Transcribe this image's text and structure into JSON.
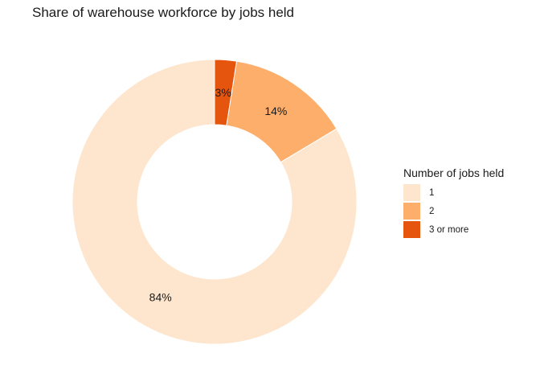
{
  "chart_data": {
    "type": "pie",
    "title": "Share of warehouse workforce by jobs held",
    "legend_title": "Number of jobs held",
    "legend_position": "right",
    "donut": true,
    "slices": [
      {
        "category": "1",
        "value": 84,
        "label": "84%",
        "color": "#fee6ce"
      },
      {
        "category": "2",
        "value": 14,
        "label": "14%",
        "color": "#fdae6b"
      },
      {
        "category": "3 or more",
        "value": 2.5,
        "label": "3%",
        "color": "#e6550d"
      }
    ]
  }
}
